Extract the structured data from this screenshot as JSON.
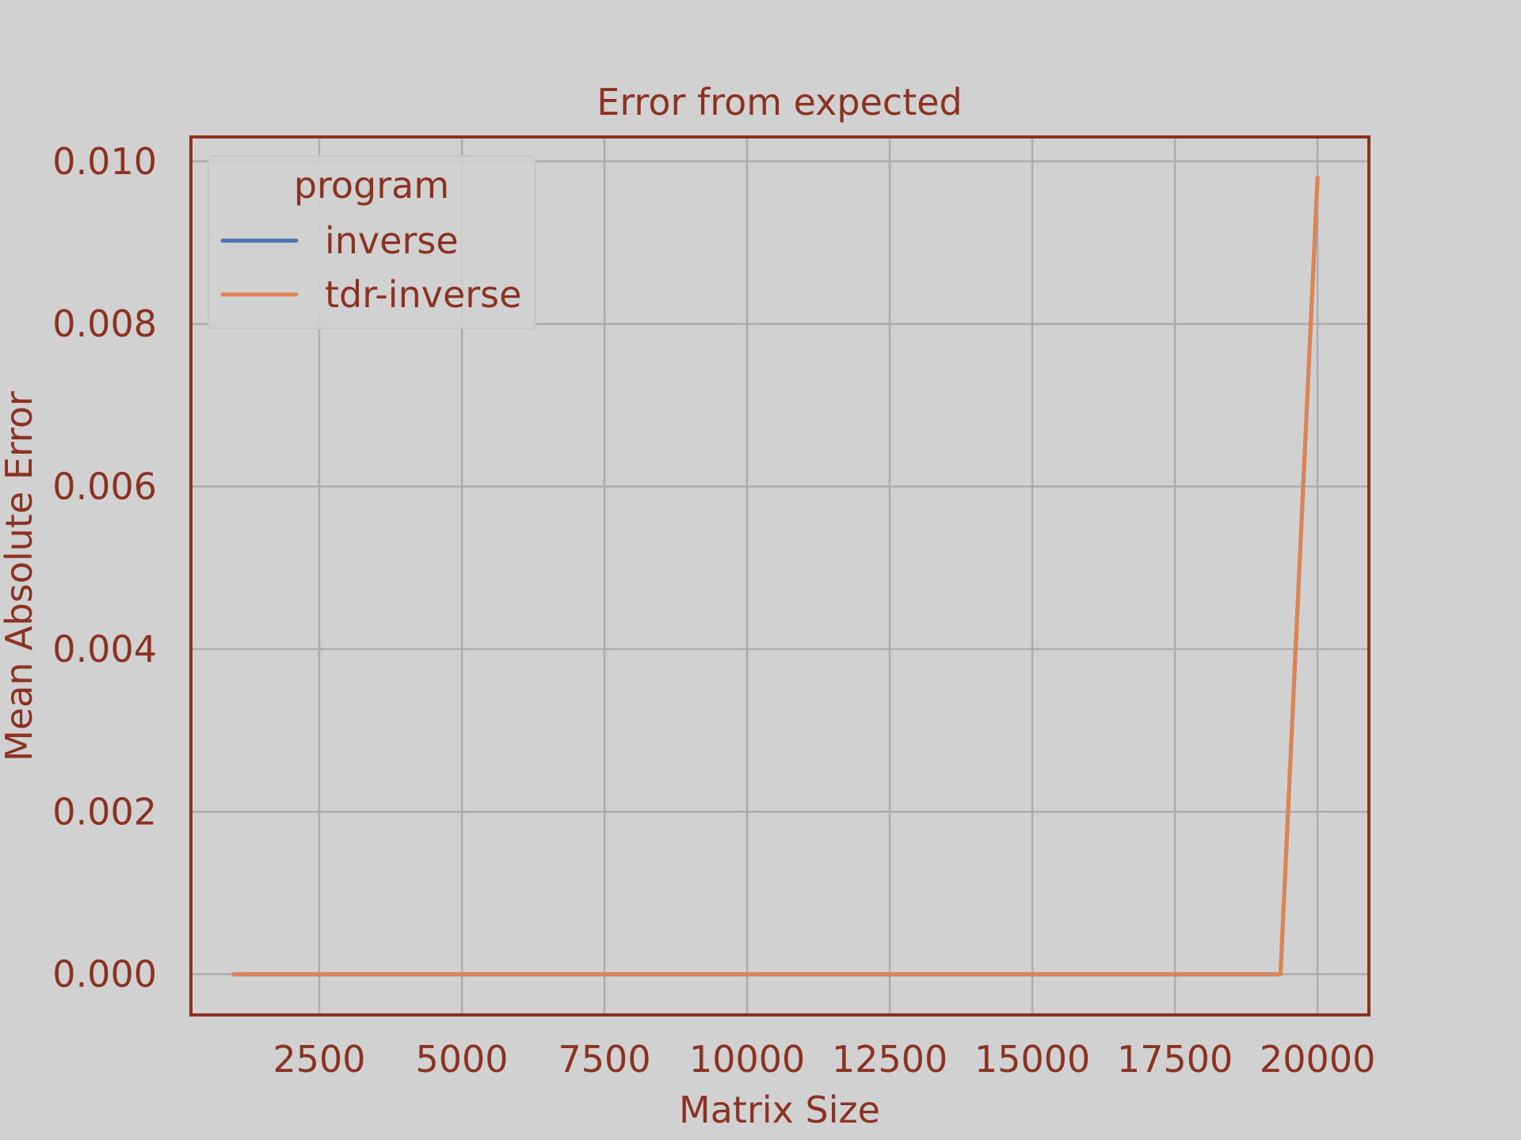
{
  "chart_data": {
    "type": "line",
    "title": "Error from expected",
    "xlabel": "Matrix Size",
    "ylabel": "Mean Absolute Error",
    "xlim": [
      250,
      20900
    ],
    "ylim": [
      -0.0005,
      0.0103
    ],
    "xticks": [
      2500,
      5000,
      7500,
      10000,
      12500,
      15000,
      17500,
      20000
    ],
    "xtick_labels": [
      "2500",
      "5000",
      "7500",
      "10000",
      "12500",
      "15000",
      "17500",
      "20000"
    ],
    "yticks": [
      0.0,
      0.002,
      0.004,
      0.006,
      0.008,
      0.01
    ],
    "ytick_labels": [
      "0.000",
      "0.002",
      "0.004",
      "0.006",
      "0.008",
      "0.010"
    ],
    "grid": true,
    "legend": {
      "title": "program",
      "placement": "top-left"
    },
    "series": [
      {
        "name": "inverse",
        "color": "#4c72b0",
        "x": [
          1000,
          19350,
          20000
        ],
        "y": [
          0.0,
          0.0,
          0.0098
        ]
      },
      {
        "name": "tdr-inverse",
        "color": "#dd8452",
        "x": [
          1000,
          19350,
          20000
        ],
        "y": [
          0.0,
          0.0,
          0.0098
        ]
      }
    ]
  }
}
